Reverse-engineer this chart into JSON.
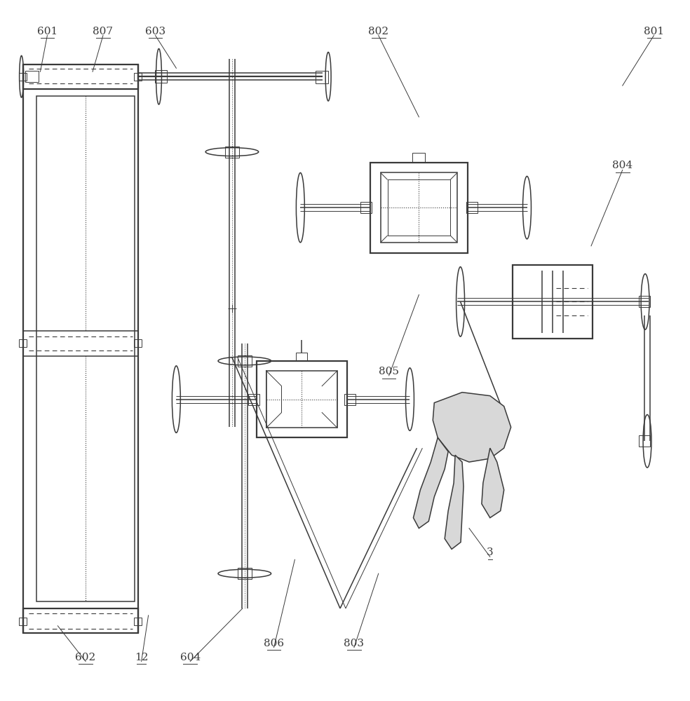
{
  "bg_color": "#ffffff",
  "line_color": "#3a3a3a",
  "fig_width": 9.84,
  "fig_height": 10.0,
  "lw_thick": 1.6,
  "lw_main": 1.1,
  "lw_thin": 0.7,
  "lw_dash": 0.8
}
